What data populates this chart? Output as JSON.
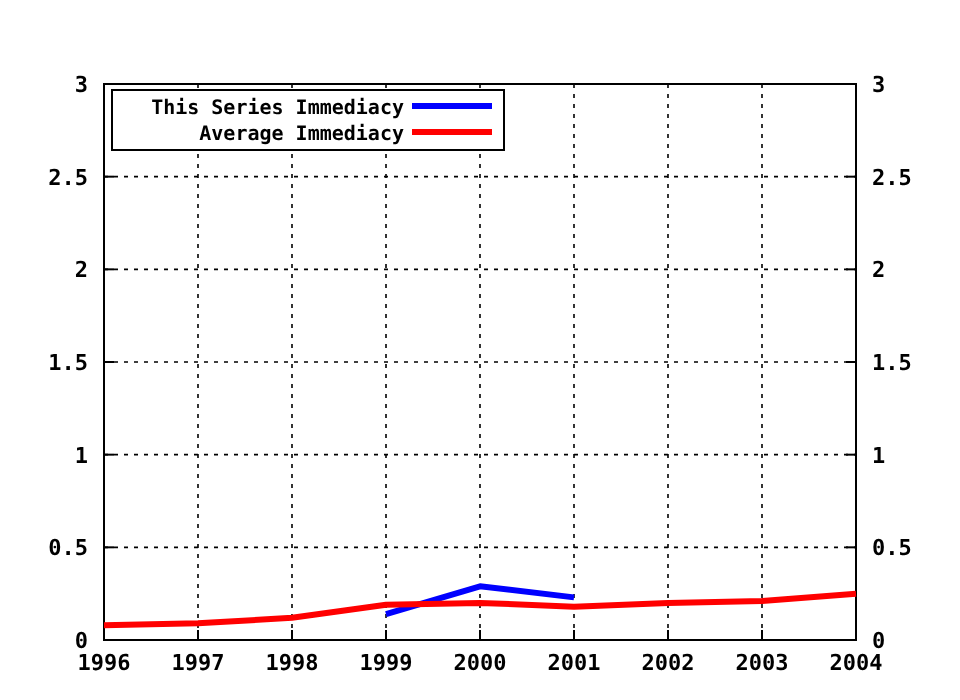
{
  "chart_data": {
    "type": "line",
    "x": [
      1996,
      1997,
      1998,
      1999,
      2000,
      2001,
      2002,
      2003,
      2004
    ],
    "series": [
      {
        "name": "This Series Immediacy",
        "color": "#0000ff",
        "values": [
          null,
          null,
          null,
          0.14,
          0.29,
          0.23,
          null,
          null,
          null
        ]
      },
      {
        "name": "Average Immediacy",
        "color": "#ff0000",
        "values": [
          0.08,
          0.09,
          0.12,
          0.19,
          0.2,
          0.18,
          0.2,
          0.21,
          0.25
        ]
      }
    ],
    "xlim": [
      1996,
      2004
    ],
    "xticks": [
      1996,
      1997,
      1998,
      1999,
      2000,
      2001,
      2002,
      2003,
      2004
    ],
    "ylim": [
      0,
      3
    ],
    "yticks": [
      0,
      0.5,
      1,
      1.5,
      2,
      2.5,
      3
    ],
    "y2lim": [
      0,
      3
    ],
    "y2ticks": [
      0,
      0.5,
      1,
      1.5,
      2,
      2.5,
      3
    ],
    "grid": true,
    "legend": "top left",
    "marker": "none",
    "line_style": "solid"
  }
}
